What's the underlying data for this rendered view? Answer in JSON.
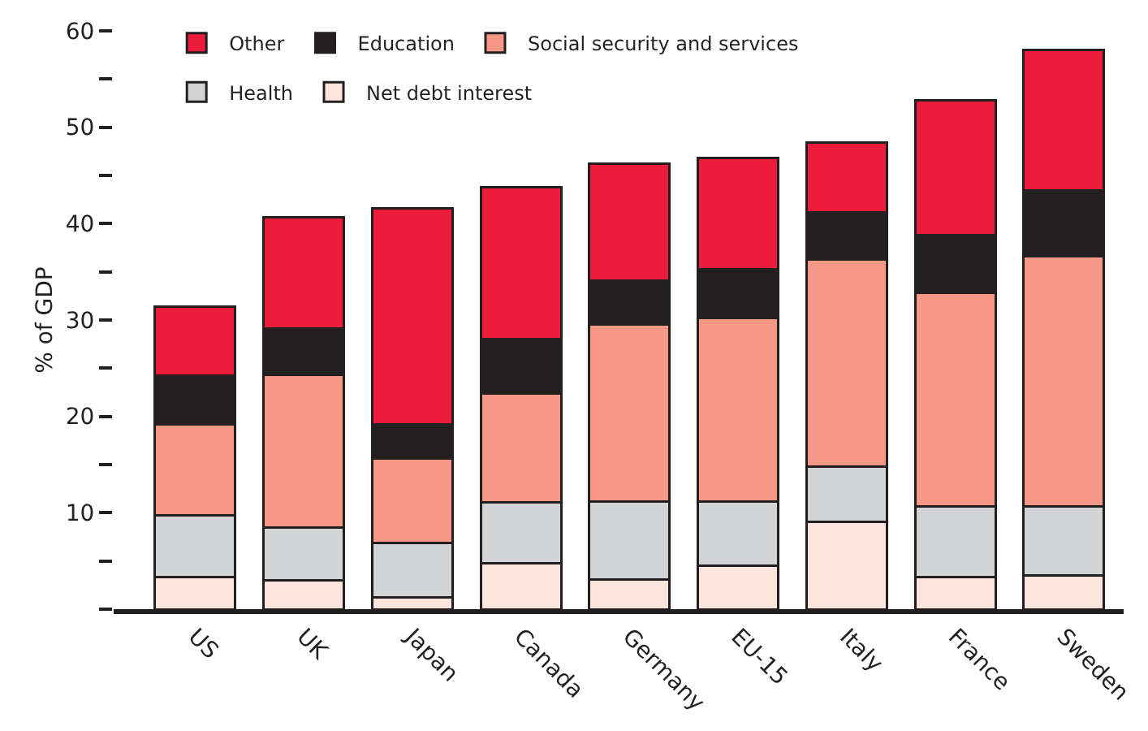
{
  "chart_data": {
    "type": "bar",
    "stacked": true,
    "ylabel": "% of GDP",
    "categories": [
      "US",
      "UK",
      "Japan",
      "Canada",
      "Germany",
      "EU-15",
      "Italy",
      "France",
      "Sweden"
    ],
    "series": [
      {
        "name": "Net debt interest",
        "color": "#fde5dd",
        "values": [
          3.3,
          3.0,
          1.2,
          4.8,
          3.1,
          4.5,
          9.1,
          3.3,
          3.5
        ]
      },
      {
        "name": "Health",
        "color": "#d1d3d4",
        "values": [
          6.4,
          5.5,
          5.7,
          6.3,
          8.1,
          6.7,
          5.7,
          7.4,
          7.2
        ]
      },
      {
        "name": "Social security and services",
        "color": "#f79886",
        "values": [
          9.5,
          15.8,
          8.7,
          11.3,
          18.3,
          19.0,
          21.5,
          22.1,
          25.9
        ]
      },
      {
        "name": "Education",
        "color": "#231f20",
        "values": [
          5.0,
          4.8,
          3.6,
          5.6,
          4.6,
          5.1,
          4.9,
          6.0,
          6.8
        ]
      },
      {
        "name": "Other",
        "color": "#ed1c3a",
        "values": [
          7.2,
          11.6,
          22.4,
          15.8,
          12.1,
          11.5,
          7.2,
          14.0,
          14.6
        ]
      }
    ],
    "ylim": [
      0,
      60
    ],
    "yticks": [
      {
        "value": 0,
        "label": null
      },
      {
        "value": 5,
        "label": null
      },
      10,
      {
        "value": 15,
        "label": null
      },
      20,
      {
        "value": 25,
        "label": null
      },
      30,
      {
        "value": 35,
        "label": null
      },
      40,
      {
        "value": 45,
        "label": null
      },
      50,
      {
        "value": 55,
        "label": null
      },
      60
    ],
    "grid": false,
    "legend": "top left"
  }
}
